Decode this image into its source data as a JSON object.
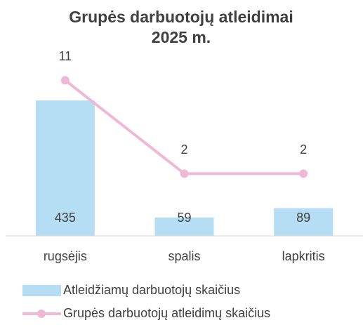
{
  "chart_data": {
    "type": "bar-line",
    "title": "Grupės darbuotojų atleidimai 2025 m.",
    "categories": [
      "rugsėjis",
      "spalis",
      "lapkritis"
    ],
    "series": [
      {
        "name": "Atleidžiamų darbuotojų skaičius",
        "type": "bar",
        "color": "#b5ddf4",
        "values": [
          435,
          59,
          89
        ]
      },
      {
        "name": "Grupės darbuotojų atleidimų skaičius",
        "type": "line",
        "axis": "y2",
        "color": "#efb9d6",
        "values": [
          11,
          2,
          2
        ]
      }
    ],
    "ylim": [
      0,
      600
    ],
    "y2lim": [
      -4,
      14
    ],
    "grid": false
  }
}
